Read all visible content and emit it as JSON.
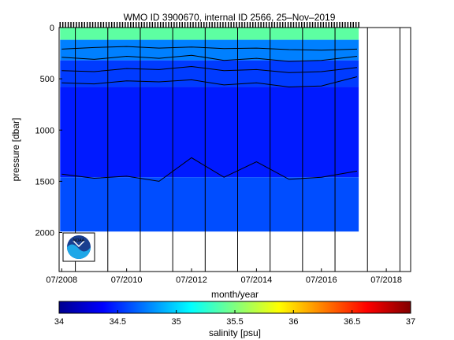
{
  "chart_data": [
    {
      "type": "heatmap",
      "title": "WMO ID 3900670, internal ID 2566, 25–Nov–2019",
      "xlabel": "month/year",
      "ylabel": "pressure [dbar]",
      "y_reversed": true,
      "ylim": [
        0,
        2380
      ],
      "xlim": [
        2008.42,
        2019.25
      ],
      "x_ticks": [
        2008.5,
        2010.5,
        2012.5,
        2014.5,
        2016.5,
        2018.5
      ],
      "x_tick_labels": [
        "07/2008",
        "07/2010",
        "07/2012",
        "07/2014",
        "07/2016",
        "07/2018"
      ],
      "y_ticks": [
        0,
        500,
        1000,
        1500,
        2000
      ],
      "y_tick_labels": [
        "0",
        "500",
        "1000",
        "1500",
        "2000"
      ],
      "year_lines": [
        2008.92,
        2009.92,
        2010.92,
        2011.92,
        2012.92,
        2013.92,
        2014.92,
        2015.92,
        2016.92,
        2017.92,
        2018.92
      ],
      "data_x_range": [
        2008.45,
        2017.65
      ],
      "max_profile_pressure": 1990,
      "salinity_layers": [
        {
          "top_dbar": 0,
          "bottom_dbar": 120,
          "salinity_psu": 35.4
        },
        {
          "top_dbar": 120,
          "bottom_dbar": 320,
          "salinity_psu": 34.75
        },
        {
          "top_dbar": 320,
          "bottom_dbar": 580,
          "salinity_psu": 34.55
        },
        {
          "top_dbar": 580,
          "bottom_dbar": 1460,
          "salinity_psu": 34.45
        },
        {
          "top_dbar": 1460,
          "bottom_dbar": 1990,
          "salinity_psu": 34.6
        }
      ],
      "contours": [
        {
          "x": [
            2008.5,
            2009.5,
            2010.5,
            2011.5,
            2012.5,
            2013.5,
            2014.5,
            2015.5,
            2016.5,
            2017.6
          ],
          "y": [
            210,
            195,
            185,
            200,
            190,
            205,
            200,
            215,
            220,
            210
          ]
        },
        {
          "x": [
            2008.5,
            2009.5,
            2010.5,
            2011.5,
            2012.5,
            2013.5,
            2014.5,
            2015.5,
            2016.5,
            2017.6
          ],
          "y": [
            290,
            310,
            280,
            300,
            270,
            320,
            300,
            330,
            320,
            280
          ]
        },
        {
          "x": [
            2008.5,
            2009.5,
            2010.5,
            2011.5,
            2012.5,
            2013.5,
            2014.5,
            2015.5,
            2016.5,
            2017.6
          ],
          "y": [
            420,
            430,
            400,
            410,
            380,
            420,
            410,
            440,
            430,
            390
          ]
        },
        {
          "x": [
            2008.5,
            2009.5,
            2010.5,
            2011.5,
            2012.5,
            2013.5,
            2014.5,
            2015.5,
            2016.5,
            2017.6
          ],
          "y": [
            540,
            550,
            520,
            530,
            510,
            560,
            540,
            580,
            570,
            480
          ]
        },
        {
          "x": [
            2008.5,
            2009.5,
            2010.5,
            2011.5,
            2012.5,
            2013.5,
            2014.5,
            2015.5,
            2016.5,
            2017.6
          ],
          "y": [
            1430,
            1470,
            1450,
            1500,
            1270,
            1460,
            1310,
            1480,
            1460,
            1400
          ]
        }
      ],
      "colormap": "jet"
    },
    {
      "type": "heatmap",
      "role": "colorbar",
      "xlabel": "salinity [psu]",
      "xlim": [
        34,
        37
      ],
      "x_ticks": [
        34,
        34.5,
        35,
        35.5,
        36,
        36.5,
        37
      ],
      "x_tick_labels": [
        "34",
        "34.5",
        "35",
        "35.5",
        "36",
        "36.5",
        "37"
      ],
      "colormap": "jet"
    }
  ],
  "logo": {
    "text": "NOAA",
    "icon": "noaa-logo-icon"
  }
}
